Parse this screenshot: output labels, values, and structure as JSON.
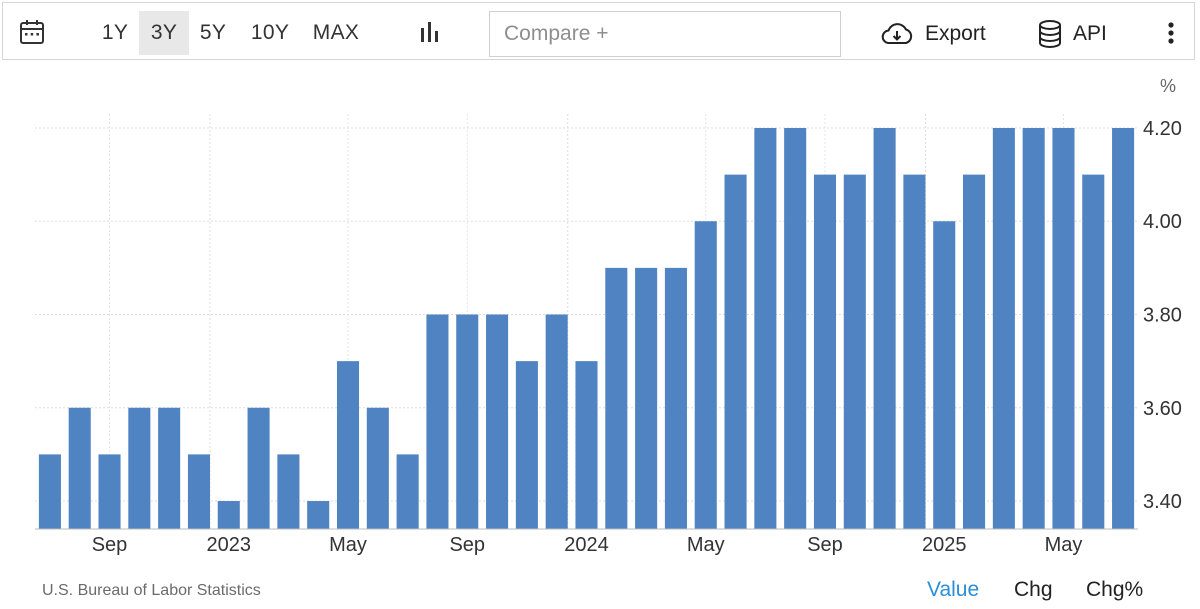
{
  "toolbar": {
    "calendar_icon": "calendar-icon",
    "ranges": [
      {
        "label": "1Y",
        "active": false
      },
      {
        "label": "3Y",
        "active": true
      },
      {
        "label": "5Y",
        "active": false
      },
      {
        "label": "10Y",
        "active": false
      },
      {
        "label": "MAX",
        "active": false
      }
    ],
    "chart_type_icon": "bar-chart-icon",
    "compare_placeholder": "Compare +",
    "export_label": "Export",
    "export_icon": "cloud-download-icon",
    "api_label": "API",
    "api_icon": "database-icon",
    "more_icon": "more-vertical-icon"
  },
  "footer": {
    "source": "U.S. Bureau of Labor Statistics",
    "modes": [
      {
        "label": "Value",
        "active": true
      },
      {
        "label": "Chg",
        "active": false
      },
      {
        "label": "Chg%",
        "active": false
      }
    ]
  },
  "colors": {
    "bar": "#4f83c1",
    "active_mode": "#2a8fd8",
    "active_range_bg": "#e8e8e8"
  },
  "chart_data": {
    "type": "bar",
    "title": "",
    "xlabel": "",
    "ylabel": "",
    "unit": "%",
    "ylim": [
      3.34,
      4.23
    ],
    "y_axis_position": "right",
    "y_ticks": [
      {
        "value": 3.4,
        "label": "3.40"
      },
      {
        "value": 3.6,
        "label": "3.60"
      },
      {
        "value": 3.8,
        "label": "3.80"
      },
      {
        "value": 4.0,
        "label": "4.00"
      },
      {
        "value": 4.2,
        "label": "4.20"
      }
    ],
    "grid": true,
    "legend": "none",
    "categories": [
      "2022-07",
      "2022-08",
      "2022-09",
      "2022-10",
      "2022-11",
      "2022-12",
      "2023-01",
      "2023-02",
      "2023-03",
      "2023-04",
      "2023-05",
      "2023-06",
      "2023-07",
      "2023-08",
      "2023-09",
      "2023-10",
      "2023-11",
      "2023-12",
      "2024-01",
      "2024-02",
      "2024-03",
      "2024-04",
      "2024-05",
      "2024-06",
      "2024-07",
      "2024-08",
      "2024-09",
      "2024-10",
      "2024-11",
      "2024-12",
      "2025-01",
      "2025-02",
      "2025-03",
      "2025-04",
      "2025-05",
      "2025-06",
      "2025-07"
    ],
    "values": [
      3.5,
      3.6,
      3.5,
      3.6,
      3.6,
      3.5,
      3.4,
      3.6,
      3.5,
      3.4,
      3.7,
      3.6,
      3.5,
      3.8,
      3.8,
      3.8,
      3.7,
      3.8,
      3.7,
      3.9,
      3.9,
      3.9,
      4.0,
      4.1,
      4.2,
      4.2,
      4.1,
      4.1,
      4.2,
      4.1,
      4.0,
      4.1,
      4.2,
      4.2,
      4.2,
      4.1,
      4.2
    ],
    "x_tick_labels": [
      {
        "index": 2,
        "label": "Sep"
      },
      {
        "index": 6,
        "label": "2023"
      },
      {
        "index": 10,
        "label": "May"
      },
      {
        "index": 14,
        "label": "Sep"
      },
      {
        "index": 18,
        "label": "2024"
      },
      {
        "index": 22,
        "label": "May"
      },
      {
        "index": 26,
        "label": "Sep"
      },
      {
        "index": 30,
        "label": "2025"
      },
      {
        "index": 34,
        "label": "May"
      }
    ]
  }
}
